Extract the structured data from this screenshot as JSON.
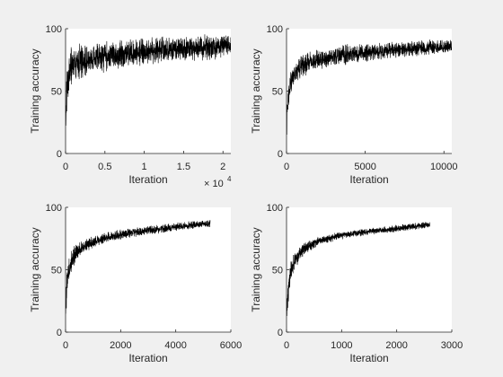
{
  "figure": {
    "background": "#f0f0f0",
    "axes_color": "#262626",
    "line_color": "#000000"
  },
  "chart_data": [
    {
      "type": "line",
      "xlabel": "Iteration",
      "ylabel": "Training accuracy",
      "xlim": [
        0,
        21000
      ],
      "ylim": [
        0,
        100
      ],
      "xticks": [
        0,
        5000,
        10000,
        15000,
        20000
      ],
      "xtick_labels": [
        "0",
        "0.5",
        "1",
        "1.5",
        "2"
      ],
      "yticks": [
        0,
        50,
        100
      ],
      "ytick_labels": [
        "0",
        "50",
        "100"
      ],
      "exponent_base": "× 10",
      "exponent_power": "4",
      "grid": false,
      "series": [
        {
          "x": [
            0,
            200,
            500,
            1000,
            2000,
            3000,
            5000,
            7500,
            10000,
            12500,
            15000,
            17500,
            20000,
            21000
          ],
          "y_center": [
            25,
            55,
            65,
            70,
            73,
            75,
            78,
            80,
            82,
            83,
            84,
            85,
            86,
            86
          ],
          "y_low": [
            10,
            35,
            48,
            55,
            60,
            62,
            65,
            68,
            70,
            72,
            73,
            74,
            76,
            77
          ],
          "y_high": [
            45,
            75,
            85,
            88,
            90,
            90,
            92,
            92,
            94,
            95,
            95,
            96,
            96,
            96
          ]
        }
      ]
    },
    {
      "type": "line",
      "xlabel": "Iteration",
      "ylabel": "Training accuracy",
      "xlim": [
        0,
        10500
      ],
      "ylim": [
        0,
        100
      ],
      "xticks": [
        0,
        5000,
        10000
      ],
      "xtick_labels": [
        "0",
        "5000",
        "10000"
      ],
      "yticks": [
        0,
        50,
        100
      ],
      "ytick_labels": [
        "0",
        "50",
        "100"
      ],
      "grid": false,
      "series": [
        {
          "x": [
            0,
            100,
            300,
            600,
            1000,
            1500,
            2500,
            4000,
            5500,
            7000,
            8500,
            10000,
            10500
          ],
          "y_center": [
            20,
            45,
            58,
            65,
            70,
            73,
            76,
            79,
            81,
            83,
            84,
            85,
            86
          ],
          "y_low": [
            8,
            28,
            45,
            55,
            60,
            64,
            68,
            71,
            74,
            76,
            78,
            80,
            80
          ],
          "y_high": [
            35,
            60,
            70,
            76,
            80,
            82,
            85,
            88,
            89,
            90,
            91,
            92,
            92
          ]
        }
      ]
    },
    {
      "type": "line",
      "xlabel": "Iteration",
      "ylabel": "Training accuracy",
      "xlim": [
        0,
        6000
      ],
      "ylim": [
        0,
        100
      ],
      "xticks": [
        0,
        2000,
        4000,
        6000
      ],
      "xtick_labels": [
        "0",
        "2000",
        "4000",
        "6000"
      ],
      "yticks": [
        0,
        50,
        100
      ],
      "ytick_labels": [
        "0",
        "50",
        "100"
      ],
      "grid": false,
      "series": [
        {
          "x": [
            0,
            50,
            150,
            300,
            500,
            800,
            1200,
            1800,
            2500,
            3200,
            4000,
            4800,
            5250
          ],
          "y_center": [
            15,
            40,
            52,
            60,
            66,
            70,
            74,
            77,
            80,
            82,
            84,
            86,
            87
          ],
          "y_low": [
            6,
            25,
            42,
            52,
            60,
            65,
            69,
            73,
            76,
            78,
            81,
            83,
            84
          ],
          "y_high": [
            28,
            55,
            63,
            69,
            73,
            76,
            79,
            82,
            84,
            86,
            88,
            90,
            90
          ]
        }
      ]
    },
    {
      "type": "line",
      "xlabel": "Iteration",
      "ylabel": "Training accuracy",
      "xlim": [
        0,
        3000
      ],
      "ylim": [
        0,
        100
      ],
      "xticks": [
        0,
        1000,
        2000,
        3000
      ],
      "xtick_labels": [
        "0",
        "1000",
        "2000",
        "3000"
      ],
      "yticks": [
        0,
        50,
        100
      ],
      "ytick_labels": [
        "0",
        "50",
        "100"
      ],
      "grid": false,
      "series": [
        {
          "x": [
            0,
            30,
            80,
            150,
            250,
            400,
            600,
            900,
            1200,
            1600,
            2000,
            2400,
            2600
          ],
          "y_center": [
            12,
            35,
            48,
            57,
            64,
            69,
            73,
            77,
            79,
            81,
            83,
            85,
            86
          ],
          "y_low": [
            5,
            22,
            40,
            50,
            58,
            64,
            69,
            73,
            76,
            78,
            80,
            82,
            83
          ],
          "y_high": [
            22,
            48,
            58,
            64,
            70,
            74,
            77,
            80,
            82,
            84,
            86,
            88,
            89
          ]
        }
      ]
    }
  ]
}
